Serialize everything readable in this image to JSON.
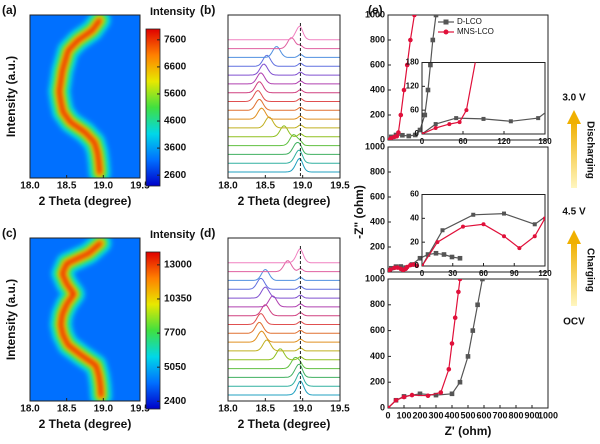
{
  "chart_data": [
    {
      "type": "heatmap",
      "label": "(a)",
      "ylabel": "Intensity (a.u.)",
      "xlabel": "2 Theta (degree)",
      "xlim": [
        18,
        19.5
      ],
      "xticks": [
        {
          "value": 18,
          "label": "18.0"
        },
        {
          "value": 18.5,
          "label": "18.5"
        },
        {
          "value": 19,
          "label": "19.0"
        },
        {
          "value": 19.5,
          "label": "19.5"
        }
      ],
      "colorbar_title": "Intensity",
      "clim": [
        2200,
        8000
      ],
      "cticks": [
        2600,
        3600,
        4600,
        5600,
        6600,
        7600
      ],
      "colormap": [
        "#0000c8",
        "#0070ff",
        "#00d8e8",
        "#40e040",
        "#e8e800",
        "#ff8000",
        "#e00000"
      ],
      "peaks": [
        18.95,
        18.94,
        18.92,
        18.88,
        18.75,
        18.55,
        18.45,
        18.42,
        18.4,
        18.42,
        18.44,
        18.48,
        18.52,
        18.65,
        18.85,
        18.95
      ]
    },
    {
      "type": "stack",
      "label": "(b)",
      "xlabel": "2 Theta (degree)",
      "xlim": [
        18,
        19.5
      ],
      "xticks": [
        {
          "value": 18,
          "label": "18.0"
        },
        {
          "value": 18.5,
          "label": "18.5"
        },
        {
          "value": 19,
          "label": "19.0"
        },
        {
          "value": 19.5,
          "label": "19.5"
        }
      ],
      "vline": 18.97,
      "peaks": [
        18.95,
        18.94,
        18.92,
        18.88,
        18.75,
        18.55,
        18.45,
        18.42,
        18.4,
        18.42,
        18.44,
        18.48,
        18.52,
        18.65,
        18.85,
        18.95
      ],
      "colors": [
        "#20a0c0",
        "#30b0a0",
        "#40b060",
        "#60c040",
        "#90c020",
        "#c0b020",
        "#e09020",
        "#e07030",
        "#e05050",
        "#d04080",
        "#b040b0",
        "#8050d0",
        "#6070e0",
        "#5090e0",
        "#e060a0",
        "#f080c0"
      ]
    },
    {
      "type": "heatmap",
      "label": "(c)",
      "ylabel": "Intensity (a.u.)",
      "xlabel": "2 Theta (degree)",
      "xlim": [
        18,
        19.5
      ],
      "xticks": [
        {
          "value": 18,
          "label": "18.0"
        },
        {
          "value": 18.5,
          "label": "18.5"
        },
        {
          "value": 19,
          "label": "19.0"
        },
        {
          "value": 19.5,
          "label": "19.5"
        }
      ],
      "colorbar_title": "Intensity",
      "clim": [
        1800,
        14000
      ],
      "cticks": [
        2400,
        5050,
        7700,
        10350,
        13000
      ],
      "colormap": [
        "#0000c8",
        "#0070ff",
        "#00d8e8",
        "#40e040",
        "#e8e800",
        "#ff8000",
        "#e00000"
      ],
      "peaks": [
        18.97,
        18.96,
        18.94,
        18.9,
        18.7,
        18.52,
        18.45,
        18.42,
        18.44,
        18.5,
        18.6,
        18.5,
        18.44,
        18.5,
        18.8,
        18.96
      ]
    },
    {
      "type": "stack",
      "label": "(d)",
      "xlabel": "2 Theta (degree)",
      "xlim": [
        18,
        19.5
      ],
      "xticks": [
        {
          "value": 18,
          "label": "18.0"
        },
        {
          "value": 18.5,
          "label": "18.5"
        },
        {
          "value": 19,
          "label": "19.0"
        },
        {
          "value": 19.5,
          "label": "19.5"
        }
      ],
      "vline": 18.97,
      "peaks": [
        18.97,
        18.96,
        18.94,
        18.9,
        18.7,
        18.52,
        18.45,
        18.42,
        18.44,
        18.5,
        18.6,
        18.5,
        18.44,
        18.5,
        18.8,
        18.96
      ],
      "colors": [
        "#20a0c0",
        "#30b0a0",
        "#40b060",
        "#60c040",
        "#90c020",
        "#c0b020",
        "#e09020",
        "#e07030",
        "#e05050",
        "#d04080",
        "#b040b0",
        "#8050d0",
        "#6070e0",
        "#5090e0",
        "#e060a0",
        "#f080c0"
      ]
    },
    {
      "type": "nyquist",
      "label": "(e)",
      "xlim": [
        0,
        1000
      ],
      "ylim": [
        0,
        1000
      ],
      "yticks": [
        0,
        200,
        400,
        600,
        800,
        1000
      ],
      "legend": "top",
      "series": [
        {
          "name": "D-LCO",
          "color": "#555555",
          "marker": "square",
          "x": [
            0,
            20,
            50,
            90,
            130,
            170,
            200,
            230,
            250,
            265,
            280,
            300
          ],
          "values": [
            0,
            25,
            40,
            38,
            32,
            40,
            80,
            200,
            400,
            600,
            800,
            1000
          ]
        },
        {
          "name": "MNS-LCO",
          "color": "#e0103a",
          "marker": "circle",
          "x": [
            0,
            20,
            40,
            55,
            65,
            80,
            100,
            120,
            140,
            165
          ],
          "values": [
            0,
            15,
            25,
            30,
            60,
            200,
            400,
            600,
            800,
            1000
          ]
        }
      ],
      "inset": {
        "xlim": [
          0,
          180
        ],
        "xticks": [
          0,
          60,
          120,
          180
        ],
        "ylim": [
          0,
          180
        ],
        "yticks": [
          0,
          60,
          120,
          180
        ]
      }
    },
    {
      "type": "nyquist",
      "ylabel": "-Z\" (ohm)",
      "xlim": [
        0,
        1000
      ],
      "ylim": [
        0,
        1000
      ],
      "yticks": [
        0,
        200,
        400,
        600,
        800,
        1000
      ],
      "series": [
        {
          "color": "#555555",
          "marker": "square",
          "x": [
            0,
            20,
            50,
            80,
            110,
            150,
            200,
            250,
            300,
            350,
            400,
            450
          ],
          "values": [
            0,
            30,
            43,
            44,
            35,
            60,
            110,
            140,
            150,
            140,
            120,
            110
          ]
        },
        {
          "color": "#e0103a",
          "marker": "circle",
          "x": [
            0,
            15,
            40,
            60,
            80,
            95,
            110,
            120,
            140,
            160,
            180
          ],
          "values": [
            0,
            20,
            33,
            35,
            25,
            15,
            25,
            40,
            55,
            60,
            50
          ]
        }
      ],
      "inset": {
        "xlim": [
          0,
          120
        ],
        "xticks": [
          0,
          30,
          60,
          90,
          120
        ],
        "ylim": [
          0,
          60
        ],
        "yticks": [
          0,
          20,
          40,
          60
        ]
      }
    },
    {
      "type": "nyquist",
      "xlabel": "Z' (ohm)",
      "xlim": [
        0,
        1000
      ],
      "xticks": [
        0,
        100,
        200,
        300,
        400,
        500,
        600,
        700,
        800,
        900,
        1000
      ],
      "ylim": [
        0,
        1000
      ],
      "yticks": [
        0,
        200,
        400,
        600,
        800,
        1000
      ],
      "series": [
        {
          "color": "#555555",
          "marker": "square",
          "x": [
            0,
            50,
            100,
            200,
            300,
            400,
            450,
            500,
            530,
            560,
            590
          ],
          "values": [
            0,
            60,
            90,
            110,
            100,
            110,
            200,
            400,
            600,
            800,
            1000
          ]
        },
        {
          "color": "#e0103a",
          "marker": "circle",
          "x": [
            0,
            50,
            100,
            150,
            250,
            330,
            380,
            400,
            420,
            440,
            450
          ],
          "values": [
            0,
            60,
            85,
            100,
            95,
            120,
            300,
            500,
            700,
            900,
            1000
          ]
        }
      ]
    }
  ],
  "side_labels": [
    "3.0 V",
    "Discharging",
    "4.5 V",
    "Charging",
    "OCV"
  ]
}
